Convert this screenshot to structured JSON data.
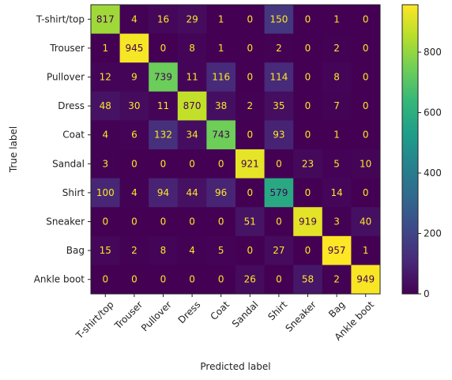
{
  "chart_data": {
    "type": "heatmap",
    "title": "",
    "xlabel": "Predicted label",
    "ylabel": "True label",
    "categories": [
      "T-shirt/top",
      "Trouser",
      "Pullover",
      "Dress",
      "Coat",
      "Sandal",
      "Shirt",
      "Sneaker",
      "Bag",
      "Ankle boot"
    ],
    "matrix": [
      [
        817,
        4,
        16,
        29,
        1,
        0,
        150,
        0,
        1,
        0
      ],
      [
        1,
        945,
        0,
        8,
        1,
        0,
        2,
        0,
        2,
        0
      ],
      [
        12,
        9,
        739,
        11,
        116,
        0,
        114,
        0,
        8,
        0
      ],
      [
        48,
        30,
        11,
        870,
        38,
        2,
        35,
        0,
        7,
        0
      ],
      [
        4,
        6,
        132,
        34,
        743,
        0,
        93,
        0,
        1,
        0
      ],
      [
        3,
        0,
        0,
        0,
        0,
        921,
        0,
        23,
        5,
        10
      ],
      [
        100,
        4,
        94,
        44,
        96,
        0,
        579,
        0,
        14,
        0
      ],
      [
        0,
        0,
        0,
        0,
        0,
        51,
        0,
        919,
        3,
        40
      ],
      [
        15,
        2,
        8,
        4,
        5,
        0,
        27,
        0,
        957,
        1
      ],
      [
        0,
        0,
        0,
        0,
        0,
        26,
        0,
        58,
        2,
        949
      ]
    ],
    "colormap": "viridis",
    "vmin": 0,
    "vmax": 957,
    "colorbar_ticks": [
      0,
      200,
      400,
      600,
      800
    ],
    "colorbar_tick_labels": [
      "0",
      "200",
      "400",
      "600",
      "800"
    ],
    "text_color_light": "#fde725",
    "text_color_dark": "#440154"
  }
}
